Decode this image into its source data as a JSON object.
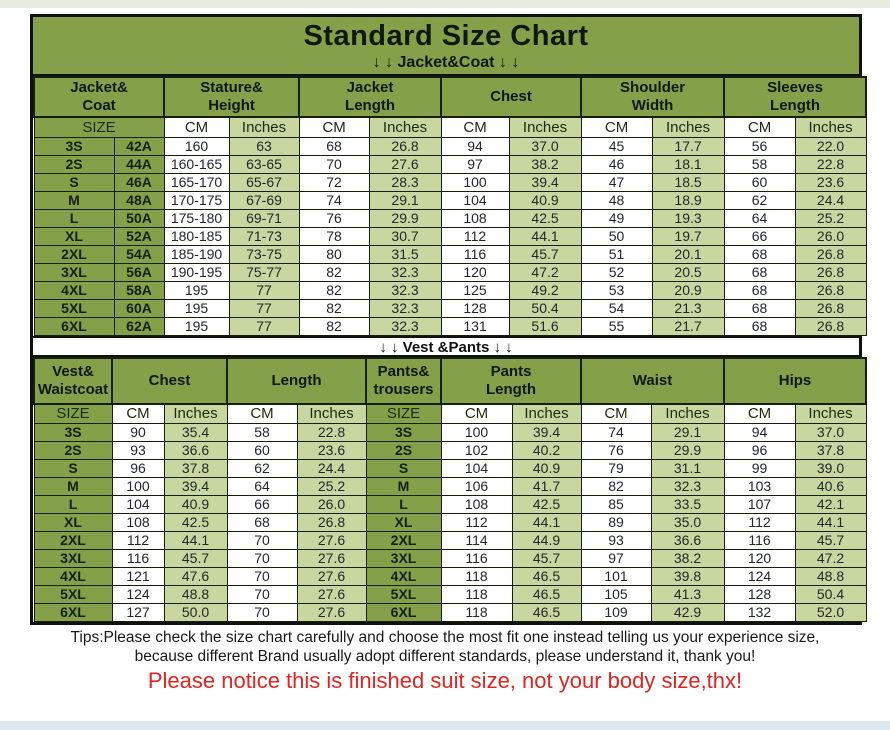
{
  "colors": {
    "accent_green": "#84A149",
    "accent_green_light": "#C8D7A0",
    "accent_red": "#E42320",
    "border": "#111111"
  },
  "header": {
    "title": "Standard Size Chart",
    "subtitle": "↓ ↓  Jacket&Coat ↓ ↓"
  },
  "divider_label": "↓ ↓  Vest &Pants ↓ ↓",
  "jacket_table": {
    "groups": [
      "Jacket&\nCoat",
      "Stature&\nHeight",
      "Jacket\nLength",
      "Chest",
      "Shoulder\nWidth",
      "Sleeves\nLength"
    ],
    "sub_headers": [
      "SIZE",
      "CM",
      "Inches",
      "CM",
      "Inches",
      "CM",
      "Inches",
      "CM",
      "Inches",
      "CM",
      "Inches"
    ],
    "rows": [
      [
        "3S",
        "42A",
        "160",
        "63",
        "68",
        "26.8",
        "94",
        "37.0",
        "45",
        "17.7",
        "56",
        "22.0"
      ],
      [
        "2S",
        "44A",
        "160-165",
        "63-65",
        "70",
        "27.6",
        "97",
        "38.2",
        "46",
        "18.1",
        "58",
        "22.8"
      ],
      [
        "S",
        "46A",
        "165-170",
        "65-67",
        "72",
        "28.3",
        "100",
        "39.4",
        "47",
        "18.5",
        "60",
        "23.6"
      ],
      [
        "M",
        "48A",
        "170-175",
        "67-69",
        "74",
        "29.1",
        "104",
        "40.9",
        "48",
        "18.9",
        "62",
        "24.4"
      ],
      [
        "L",
        "50A",
        "175-180",
        "69-71",
        "76",
        "29.9",
        "108",
        "42.5",
        "49",
        "19.3",
        "64",
        "25.2"
      ],
      [
        "XL",
        "52A",
        "180-185",
        "71-73",
        "78",
        "30.7",
        "112",
        "44.1",
        "50",
        "19.7",
        "66",
        "26.0"
      ],
      [
        "2XL",
        "54A",
        "185-190",
        "73-75",
        "80",
        "31.5",
        "116",
        "45.7",
        "51",
        "20.1",
        "68",
        "26.8"
      ],
      [
        "3XL",
        "56A",
        "190-195",
        "75-77",
        "82",
        "32.3",
        "120",
        "47.2",
        "52",
        "20.5",
        "68",
        "26.8"
      ],
      [
        "4XL",
        "58A",
        "195",
        "77",
        "82",
        "32.3",
        "125",
        "49.2",
        "53",
        "20.9",
        "68",
        "26.8"
      ],
      [
        "5XL",
        "60A",
        "195",
        "77",
        "82",
        "32.3",
        "128",
        "50.4",
        "54",
        "21.3",
        "68",
        "26.8"
      ],
      [
        "6XL",
        "62A",
        "195",
        "77",
        "82",
        "32.3",
        "131",
        "51.6",
        "55",
        "21.7",
        "68",
        "26.8"
      ]
    ]
  },
  "vest_pants_table": {
    "groups": [
      "Vest&\nWaistcoat",
      "Chest",
      "Length",
      "Pants&\ntrousers",
      "Pants\nLength",
      "Waist",
      "Hips"
    ],
    "sub_headers": [
      "SIZE",
      "CM",
      "Inches",
      "CM",
      "Inches",
      "SIZE",
      "CM",
      "Inches",
      "CM",
      "Inches",
      "CM",
      "Inches"
    ],
    "rows": [
      [
        "3S",
        "90",
        "35.4",
        "58",
        "22.8",
        "3S",
        "100",
        "39.4",
        "74",
        "29.1",
        "94",
        "37.0"
      ],
      [
        "2S",
        "93",
        "36.6",
        "60",
        "23.6",
        "2S",
        "102",
        "40.2",
        "76",
        "29.9",
        "96",
        "37.8"
      ],
      [
        "S",
        "96",
        "37.8",
        "62",
        "24.4",
        "S",
        "104",
        "40.9",
        "79",
        "31.1",
        "99",
        "39.0"
      ],
      [
        "M",
        "100",
        "39.4",
        "64",
        "25.2",
        "M",
        "106",
        "41.7",
        "82",
        "32.3",
        "103",
        "40.6"
      ],
      [
        "L",
        "104",
        "40.9",
        "66",
        "26.0",
        "L",
        "108",
        "42.5",
        "85",
        "33.5",
        "107",
        "42.1"
      ],
      [
        "XL",
        "108",
        "42.5",
        "68",
        "26.8",
        "XL",
        "112",
        "44.1",
        "89",
        "35.0",
        "112",
        "44.1"
      ],
      [
        "2XL",
        "112",
        "44.1",
        "70",
        "27.6",
        "2XL",
        "114",
        "44.9",
        "93",
        "36.6",
        "116",
        "45.7"
      ],
      [
        "3XL",
        "116",
        "45.7",
        "70",
        "27.6",
        "3XL",
        "116",
        "45.7",
        "97",
        "38.2",
        "120",
        "47.2"
      ],
      [
        "4XL",
        "121",
        "47.6",
        "70",
        "27.6",
        "4XL",
        "118",
        "46.5",
        "101",
        "39.8",
        "124",
        "48.8"
      ],
      [
        "5XL",
        "124",
        "48.8",
        "70",
        "27.6",
        "5XL",
        "118",
        "46.5",
        "105",
        "41.3",
        "128",
        "50.4"
      ],
      [
        "6XL",
        "127",
        "50.0",
        "70",
        "27.6",
        "6XL",
        "118",
        "46.5",
        "109",
        "42.9",
        "132",
        "52.0"
      ]
    ]
  },
  "tips": {
    "line1": "Tips:Please check the size chart carefully and choose the most fit one instead telling us your experience size,",
    "line2": "because different Brand usually adopt different standards, please understand it, thank you!"
  },
  "notice": "Please notice this is finished suit size, not your body size,thx!"
}
